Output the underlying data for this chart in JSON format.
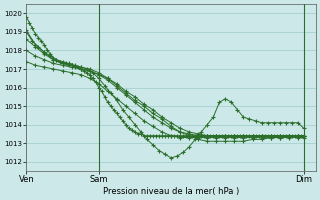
{
  "bg_color": "#cce8e8",
  "grid_color": "#9ecece",
  "line_color": "#2a6e2a",
  "marker_color": "#2a6e2a",
  "xlabel": "Pression niveau de la mer( hPa )",
  "xtick_labels": [
    "Ven",
    "Sam",
    "Dim"
  ],
  "ylim": [
    1011.5,
    1020.5
  ],
  "yticks": [
    1012,
    1013,
    1014,
    1015,
    1016,
    1017,
    1018,
    1019,
    1020
  ],
  "xlim": [
    0,
    96
  ],
  "ven_x": 0,
  "sam_x": 24,
  "dim_x": 92,
  "series": [
    {
      "x": [
        0,
        1,
        2,
        3,
        4,
        5,
        6,
        7,
        8,
        9,
        10,
        11,
        12,
        13,
        14,
        15,
        16,
        17,
        18,
        19,
        20,
        21,
        22,
        23,
        24,
        25,
        26,
        27,
        28,
        29,
        30,
        31,
        32,
        33,
        34,
        35,
        36,
        37,
        38,
        39,
        40,
        41,
        42,
        43,
        44,
        45,
        46,
        47,
        48,
        49,
        50,
        51,
        52,
        53,
        54,
        55,
        56,
        57,
        58,
        59,
        60,
        61,
        62,
        63,
        64,
        65,
        66,
        67,
        68,
        69,
        70,
        71,
        72,
        73,
        74,
        75,
        76,
        77,
        78,
        79,
        80,
        81,
        82,
        83,
        84,
        85,
        86,
        87,
        88,
        89,
        90,
        91,
        92
      ],
      "y": [
        1019.8,
        1019.5,
        1019.2,
        1018.9,
        1018.7,
        1018.5,
        1018.3,
        1018.0,
        1017.8,
        1017.6,
        1017.5,
        1017.4,
        1017.3,
        1017.3,
        1017.2,
        1017.2,
        1017.1,
        1017.1,
        1017.0,
        1016.9,
        1016.8,
        1016.7,
        1016.5,
        1016.3,
        1016.0,
        1015.8,
        1015.5,
        1015.2,
        1015.0,
        1014.8,
        1014.6,
        1014.4,
        1014.2,
        1014.0,
        1013.8,
        1013.7,
        1013.6,
        1013.5,
        1013.5,
        1013.4,
        1013.4,
        1013.4,
        1013.4,
        1013.4,
        1013.4,
        1013.4,
        1013.4,
        1013.4,
        1013.4,
        1013.4,
        1013.4,
        1013.4,
        1013.4,
        1013.4,
        1013.4,
        1013.4,
        1013.4,
        1013.4,
        1013.4,
        1013.4,
        1013.4,
        1013.4,
        1013.4,
        1013.4,
        1013.4,
        1013.4,
        1013.4,
        1013.4,
        1013.4,
        1013.4,
        1013.4,
        1013.4,
        1013.4,
        1013.4,
        1013.4,
        1013.4,
        1013.4,
        1013.4,
        1013.4,
        1013.4,
        1013.4,
        1013.4,
        1013.4,
        1013.4,
        1013.4,
        1013.4,
        1013.4,
        1013.4,
        1013.4,
        1013.4,
        1013.4,
        1013.4,
        1013.4
      ]
    },
    {
      "x": [
        0,
        3,
        6,
        9,
        12,
        15,
        18,
        21,
        24,
        27,
        30,
        33,
        36,
        39,
        42,
        45,
        48,
        51,
        54,
        57,
        60,
        63,
        66,
        69,
        72,
        75,
        78,
        81,
        84,
        87,
        90,
        92
      ],
      "y": [
        1019.1,
        1018.3,
        1017.9,
        1017.5,
        1017.3,
        1017.2,
        1017.1,
        1017.0,
        1016.8,
        1016.5,
        1016.1,
        1015.7,
        1015.3,
        1015.0,
        1014.6,
        1014.3,
        1013.9,
        1013.6,
        1013.4,
        1013.2,
        1013.1,
        1013.1,
        1013.1,
        1013.1,
        1013.1,
        1013.2,
        1013.2,
        1013.3,
        1013.3,
        1013.4,
        1013.4,
        1013.4
      ]
    },
    {
      "x": [
        0,
        3,
        6,
        9,
        12,
        15,
        18,
        21,
        24,
        27,
        30,
        33,
        36,
        39,
        42,
        45,
        48,
        51,
        54,
        57,
        60,
        63,
        66,
        69,
        72,
        75,
        78,
        81,
        84,
        87,
        90,
        92
      ],
      "y": [
        1018.6,
        1018.2,
        1017.8,
        1017.5,
        1017.3,
        1017.2,
        1017.0,
        1016.9,
        1016.7,
        1016.5,
        1016.2,
        1015.8,
        1015.5,
        1015.1,
        1014.8,
        1014.4,
        1014.1,
        1013.8,
        1013.6,
        1013.5,
        1013.4,
        1013.4,
        1013.4,
        1013.4,
        1013.4,
        1013.4,
        1013.4,
        1013.4,
        1013.4,
        1013.4,
        1013.4,
        1013.4
      ]
    },
    {
      "x": [
        0,
        3,
        6,
        9,
        12,
        15,
        18,
        21,
        24,
        27,
        30,
        33,
        36,
        39,
        42,
        45,
        48,
        51,
        54,
        57,
        60,
        63,
        66,
        69,
        72,
        75,
        78,
        81,
        84,
        87,
        90,
        92
      ],
      "y": [
        1018.0,
        1017.7,
        1017.5,
        1017.3,
        1017.2,
        1017.1,
        1017.0,
        1016.9,
        1016.7,
        1016.4,
        1016.0,
        1015.6,
        1015.2,
        1014.8,
        1014.4,
        1014.1,
        1013.8,
        1013.6,
        1013.5,
        1013.4,
        1013.4,
        1013.4,
        1013.4,
        1013.4,
        1013.4,
        1013.4,
        1013.4,
        1013.4,
        1013.4,
        1013.4,
        1013.4,
        1013.4
      ]
    },
    {
      "x": [
        0,
        3,
        6,
        9,
        12,
        15,
        18,
        21,
        24,
        27,
        30,
        33,
        36,
        39,
        42,
        45,
        48,
        51,
        54,
        57,
        60,
        63,
        66,
        69,
        72,
        75,
        78,
        81,
        84,
        87,
        90,
        92
      ],
      "y": [
        1017.4,
        1017.2,
        1017.1,
        1017.0,
        1016.9,
        1016.8,
        1016.7,
        1016.5,
        1016.2,
        1015.8,
        1015.4,
        1015.0,
        1014.6,
        1014.2,
        1013.9,
        1013.6,
        1013.4,
        1013.3,
        1013.3,
        1013.3,
        1013.3,
        1013.3,
        1013.3,
        1013.3,
        1013.3,
        1013.3,
        1013.3,
        1013.3,
        1013.3,
        1013.3,
        1013.3,
        1013.3
      ]
    },
    {
      "x": [
        0,
        2,
        4,
        6,
        8,
        10,
        12,
        14,
        16,
        18,
        20,
        22,
        24,
        26,
        28,
        30,
        32,
        34,
        36,
        38,
        40,
        42,
        44,
        46,
        48,
        50,
        52,
        54,
        56,
        58,
        60,
        62,
        64,
        66,
        68,
        70,
        72,
        74,
        76,
        78,
        80,
        82,
        84,
        86,
        88,
        90,
        92
      ],
      "y": [
        1019.0,
        1018.5,
        1018.2,
        1017.9,
        1017.7,
        1017.5,
        1017.4,
        1017.3,
        1017.2,
        1017.1,
        1017.0,
        1016.8,
        1016.5,
        1016.1,
        1015.7,
        1015.3,
        1014.8,
        1014.4,
        1014.0,
        1013.6,
        1013.2,
        1012.9,
        1012.6,
        1012.4,
        1012.2,
        1012.3,
        1012.5,
        1012.8,
        1013.2,
        1013.6,
        1014.0,
        1014.4,
        1015.2,
        1015.4,
        1015.2,
        1014.8,
        1014.4,
        1014.3,
        1014.2,
        1014.1,
        1014.1,
        1014.1,
        1014.1,
        1014.1,
        1014.1,
        1014.1,
        1013.8
      ]
    }
  ]
}
